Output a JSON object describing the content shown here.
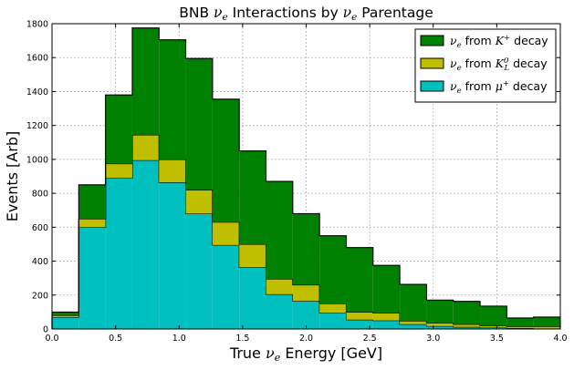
{
  "chart_data": {
    "type": "bar",
    "stacked": true,
    "histogram": true,
    "title": {
      "prefix": "BNB ",
      "sym": "ν",
      "sub": "e",
      "mid": " Interactions by ",
      "sym2": "ν",
      "sub2": "e",
      "suffix": " Parentage"
    },
    "xlabel": {
      "prefix": "True ",
      "sym": "ν",
      "sub": "e",
      "suffix": " Energy [GeV]"
    },
    "ylabel": "Events [Arb]",
    "xlim": [
      0.0,
      4.0
    ],
    "ylim": [
      0,
      1800
    ],
    "xticks": [
      "0.0",
      "0.5",
      "1.0",
      "1.5",
      "2.0",
      "2.5",
      "3.0",
      "3.5",
      "4.0"
    ],
    "yticks": [
      "0",
      "200",
      "400",
      "600",
      "800",
      "1000",
      "1200",
      "1400",
      "1600",
      "1800"
    ],
    "grid": true,
    "legend_position": "top-right",
    "bin_edges": [
      0.0,
      0.2105,
      0.4211,
      0.6316,
      0.8421,
      1.0526,
      1.2632,
      1.4737,
      1.6842,
      1.8947,
      2.1053,
      2.3158,
      2.5263,
      2.7368,
      2.9474,
      3.1579,
      3.3684,
      3.5789,
      3.7895,
      4.0
    ],
    "series": [
      {
        "name_sym": "ν",
        "name_sub": "e",
        "name_mid": " from ",
        "name_sym2": "μ",
        "name_sup2": "+",
        "name_sub2": "",
        "name_suffix": " decay",
        "color": "#00bfbf",
        "values": [
          70,
          600,
          890,
          995,
          865,
          680,
          495,
          365,
          205,
          165,
          95,
          55,
          50,
          28,
          17,
          12,
          8,
          5,
          3
        ]
      },
      {
        "name_sym": "ν",
        "name_sub": "e",
        "name_mid": " from ",
        "name_sym2": "K",
        "name_sup2": "0",
        "name_sub2": "L",
        "name_suffix": " decay",
        "color": "#bfbf00",
        "values": [
          10,
          50,
          85,
          150,
          135,
          140,
          135,
          135,
          90,
          95,
          55,
          45,
          45,
          20,
          18,
          16,
          12,
          10,
          12
        ]
      },
      {
        "name_sym": "ν",
        "name_sub": "e",
        "name_mid": " from ",
        "name_sym2": "K",
        "name_sup2": "+",
        "name_sub2": "",
        "name_suffix": " decay",
        "color": "#008000",
        "values": [
          20,
          200,
          405,
          630,
          705,
          775,
          725,
          550,
          575,
          420,
          400,
          380,
          280,
          215,
          135,
          135,
          115,
          50,
          55
        ]
      }
    ]
  }
}
